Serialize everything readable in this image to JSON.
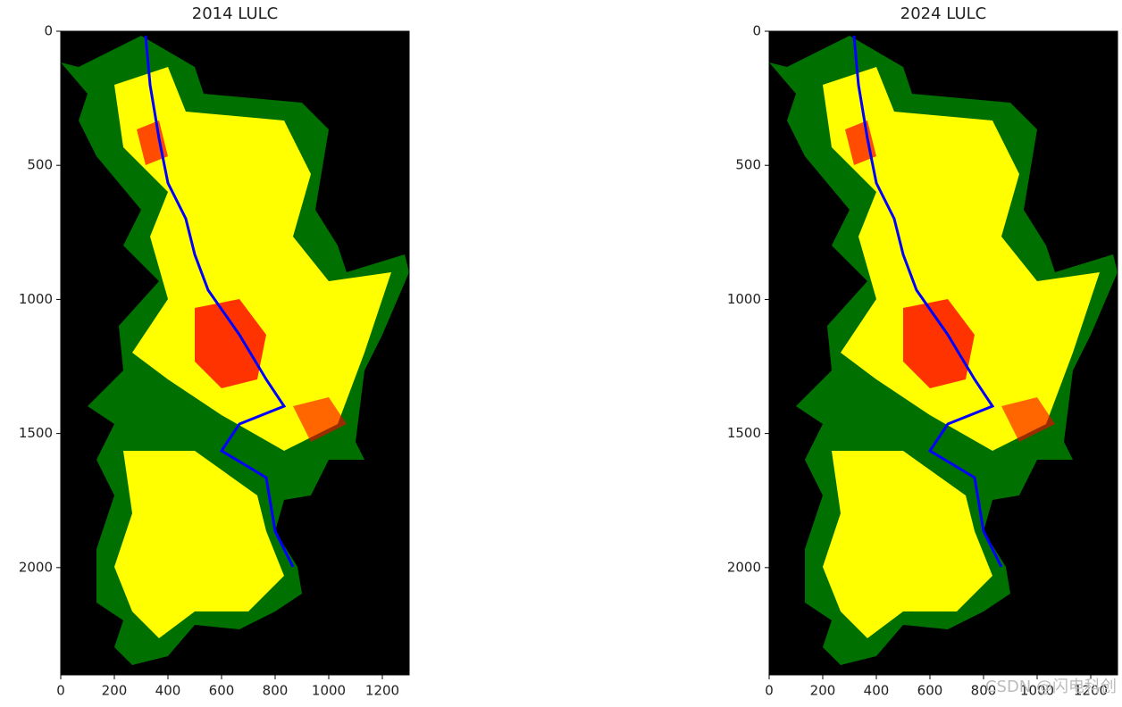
{
  "chart_data": [
    {
      "type": "image",
      "title": "2014 LULC",
      "xlim": [
        0,
        1300
      ],
      "xticks": [
        0,
        200,
        400,
        600,
        800,
        1000,
        1200
      ],
      "ylim": [
        2400,
        0
      ],
      "yticks": [
        0,
        500,
        1000,
        1500,
        2000
      ]
    },
    {
      "type": "image",
      "title": "2024 LULC",
      "xlim": [
        0,
        1300
      ],
      "xticks": [
        0,
        200,
        400,
        600,
        800,
        1000,
        1200
      ],
      "ylim": [
        2400,
        0
      ],
      "yticks": [
        0,
        500,
        1000,
        1500,
        2000
      ]
    }
  ],
  "watermark": "CSDN @闪电科创"
}
